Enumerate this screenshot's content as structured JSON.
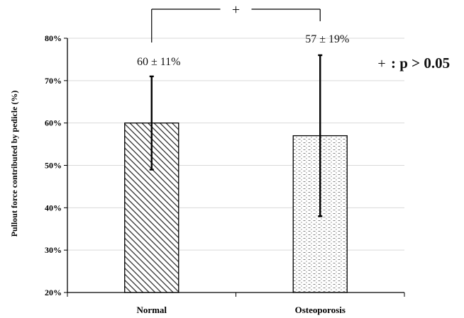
{
  "chart_data": {
    "type": "bar",
    "categories": [
      "Normal",
      "Osteoporosis"
    ],
    "values": [
      60,
      57
    ],
    "errors": [
      11,
      19
    ],
    "data_labels": [
      "60 ± 11%",
      "57 ± 19%"
    ],
    "ylabel": "Pullout force contributed by pedicle (%)",
    "xlabel": "",
    "ylim": [
      20,
      80
    ],
    "yticks": [
      "20%",
      "30%",
      "40%",
      "50%",
      "60%",
      "70%",
      "80%"
    ],
    "grid": true,
    "bar_patterns": [
      "diagonal-hatch",
      "dotted-dash"
    ],
    "significance": {
      "symbol": "+",
      "legend_symbol": "+",
      "legend_text": ": p > 0.05"
    }
  },
  "colors": {
    "axis": "#000000",
    "grid": "#d9d9d9",
    "bar_edge": "#000000",
    "hatch": "#222222",
    "dots": "#555555"
  }
}
